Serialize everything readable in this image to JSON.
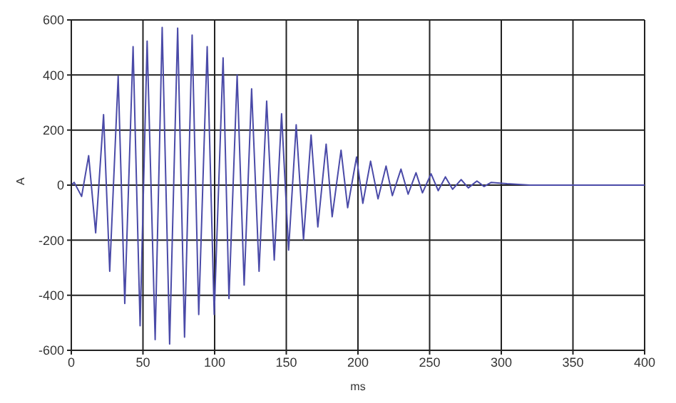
{
  "chart_data": {
    "type": "line",
    "xlabel": "ms",
    "ylabel": "A",
    "x": [
      0,
      2,
      7.2,
      12.1,
      17,
      22.5,
      26.8,
      32.7,
      37.3,
      43.1,
      48,
      52.9,
      58.5,
      63.4,
      68.6,
      74.2,
      79,
      84.3,
      88.9,
      94.8,
      99.7,
      105.9,
      110,
      115.7,
      120.6,
      125.8,
      131,
      136.3,
      141.6,
      146.7,
      151.6,
      156.9,
      162,
      167.3,
      172,
      177.8,
      182,
      188.2,
      192.8,
      199,
      203.4,
      208.8,
      214,
      219.6,
      224,
      230,
      235,
      240.5,
      245,
      251,
      256,
      261,
      266,
      272,
      277,
      283,
      288,
      293,
      304,
      320,
      400
    ],
    "series": [
      {
        "color": "#4a4aa8",
        "values": [
          0,
          10,
          -41,
          107,
          -173,
          256,
          -313,
          396,
          -430,
          503,
          -511,
          523,
          -561,
          573,
          -577,
          570,
          -552,
          545,
          -470,
          503,
          -470,
          462,
          -412,
          400,
          -363,
          350,
          -313,
          305,
          -272,
          259,
          -236,
          219,
          -198,
          182,
          -152,
          149,
          -115,
          127,
          -82,
          102,
          -66,
          87,
          -50,
          69,
          -38,
          58,
          -33,
          45,
          -28,
          41,
          -20,
          30,
          -15,
          20,
          -10,
          15,
          -5,
          10,
          5,
          0,
          0
        ]
      }
    ],
    "xlim": [
      0,
      400
    ],
    "xticks": [
      0,
      50,
      100,
      150,
      200,
      250,
      300,
      350,
      400
    ],
    "ylim": [
      -600,
      600
    ],
    "yticks": [
      -600,
      -400,
      -200,
      0,
      200,
      400,
      600
    ],
    "grid": true,
    "marker": "none",
    "line_style": "solid"
  }
}
